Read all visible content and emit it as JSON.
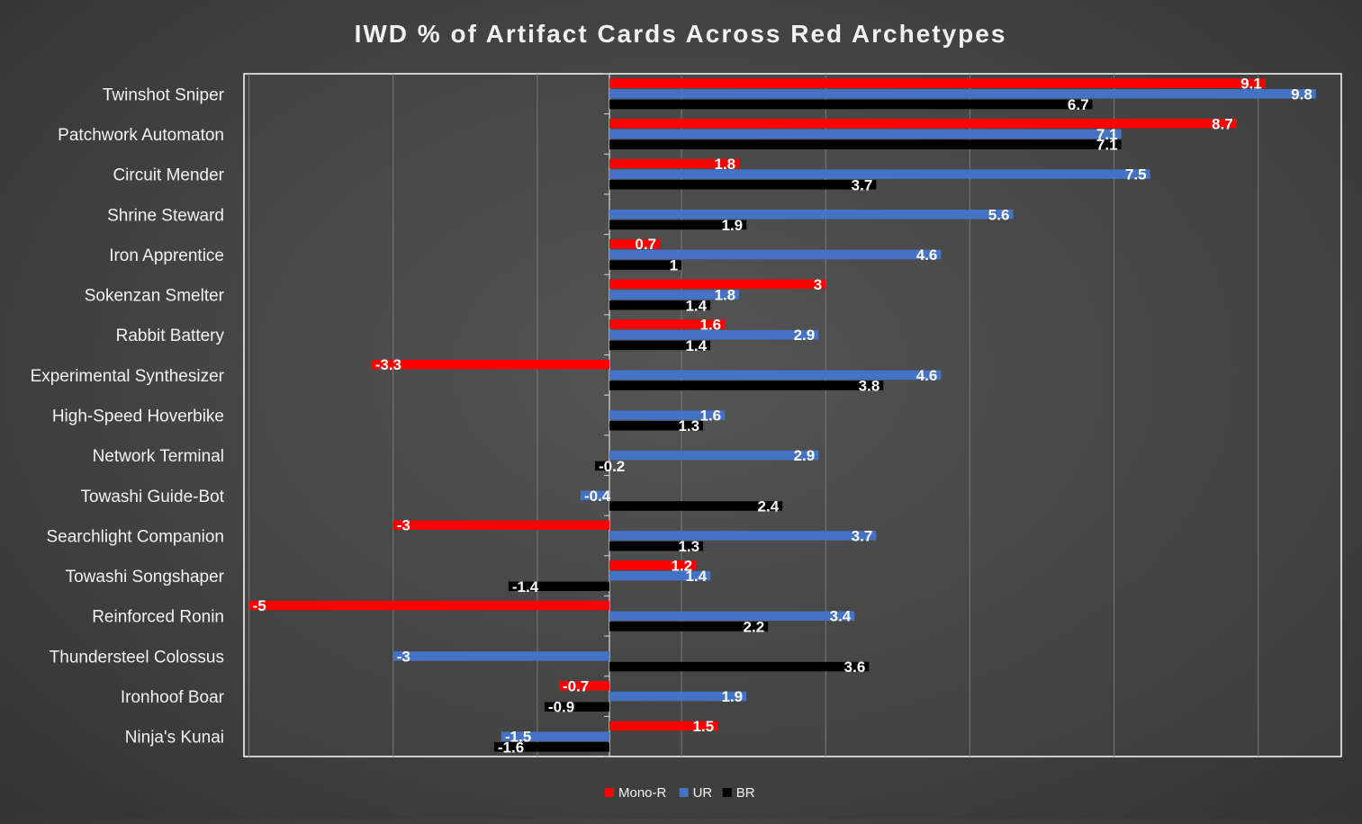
{
  "chart_data": {
    "type": "bar",
    "orientation": "horizontal",
    "title": "IWD % of Artifact Cards Across Red Archetypes",
    "xlabel": "",
    "ylabel": "",
    "xlim": [
      -5,
      10
    ],
    "grid": true,
    "legend_position": "bottom",
    "categories": [
      "Twinshot Sniper",
      "Patchwork Automaton",
      "Circuit Mender",
      "Shrine Steward",
      "Iron Apprentice",
      "Sokenzan Smelter",
      "Rabbit Battery",
      "Experimental Synthesizer",
      "High-Speed Hoverbike",
      "Network Terminal",
      "Towashi Guide-Bot",
      "Searchlight Companion",
      "Towashi Songshaper",
      "Reinforced Ronin",
      "Thundersteel Colossus",
      "Ironhoof Boar",
      "Ninja's Kunai"
    ],
    "series": [
      {
        "name": "Mono-R",
        "color": "#ff0000",
        "values": [
          9.1,
          8.7,
          1.8,
          null,
          0.7,
          3,
          1.6,
          -3.3,
          null,
          null,
          null,
          -3,
          1.2,
          -5,
          null,
          -0.7,
          1.5
        ],
        "labels": [
          "9.1",
          "8.7",
          "1.8",
          "",
          "0.7",
          "3",
          "1.6",
          "-3.3",
          "",
          "",
          "",
          "-3",
          "1.2",
          "-5",
          "",
          "-0.7",
          "1.5"
        ]
      },
      {
        "name": "UR",
        "color": "#4472c4",
        "values": [
          9.8,
          7.1,
          7.5,
          5.6,
          4.6,
          1.8,
          2.9,
          4.6,
          1.6,
          2.9,
          -0.4,
          3.7,
          1.4,
          3.4,
          -3,
          1.9,
          -1.5
        ],
        "labels": [
          "9.8",
          "7.1",
          "7.5",
          "5.6",
          "4.6",
          "1.8",
          "2.9",
          "4.6",
          "1.6",
          "2.9",
          "-0.4",
          "3.7",
          "1.4",
          "3.4",
          "-3",
          "1.9",
          "-1.5"
        ]
      },
      {
        "name": "BR",
        "color": "#000000",
        "values": [
          6.7,
          7.1,
          3.7,
          1.9,
          1,
          1.4,
          1.4,
          3.8,
          1.3,
          -0.2,
          2.4,
          1.3,
          -1.4,
          2.2,
          3.6,
          -0.9,
          -1.6
        ],
        "labels": [
          "6.7",
          "7.1",
          "3.7",
          "1.9",
          "1",
          "1.4",
          "1.4",
          "3.8",
          "1.3",
          "-0.2",
          "2.4",
          "1.3",
          "-1.4",
          "2.2",
          "3.6",
          "-0.9",
          "-1.6"
        ]
      }
    ]
  }
}
